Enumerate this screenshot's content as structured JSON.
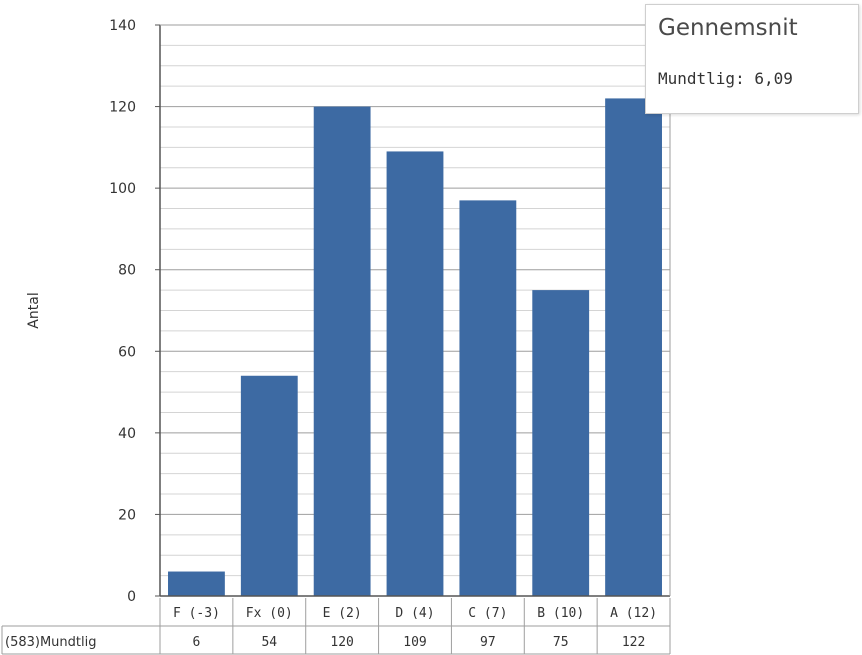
{
  "chart_data": {
    "type": "bar",
    "ylabel": "Antal",
    "ylim": [
      0,
      140
    ],
    "yticks": [
      0,
      20,
      40,
      60,
      80,
      100,
      120,
      140
    ],
    "categories": [
      "F (-3)",
      "Fx (0)",
      "E (2)",
      "D (4)",
      "C (7)",
      "B (10)",
      "A (12)"
    ],
    "series": [
      {
        "name": "(583)Mundtlig",
        "values": [
          6,
          54,
          120,
          109,
          97,
          75,
          122
        ]
      }
    ],
    "grid": true,
    "bar_color": "#3d6aa3"
  },
  "legend": {
    "title": "Gennemsnit",
    "line": "Mundtlig: 6,09"
  }
}
